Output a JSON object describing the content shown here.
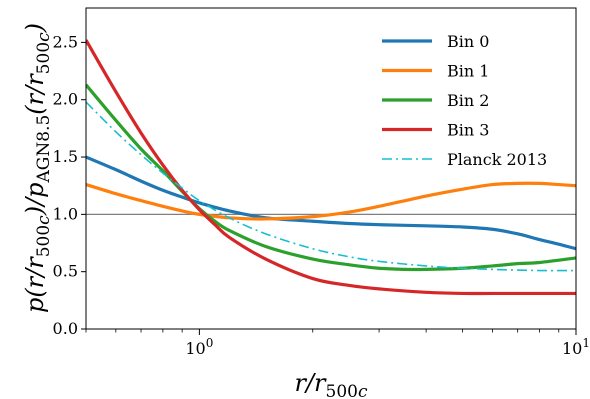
{
  "chart_data": {
    "type": "line",
    "xlabel": "r/r500c",
    "ylabel": "p(r/r500c)/pAGN8.5(r/r500c)",
    "x_scale": "log",
    "xlim": [
      0.5,
      10
    ],
    "ylim": [
      0,
      2.8
    ],
    "x_ticks": [
      {
        "value": 1,
        "base": "10",
        "exp": "0"
      },
      {
        "value": 10,
        "base": "10",
        "exp": "1"
      }
    ],
    "y_ticks": [
      "0.0",
      "0.5",
      "1.0",
      "1.5",
      "2.0",
      "2.5"
    ],
    "y_tick_values": [
      0.0,
      0.5,
      1.0,
      1.5,
      2.0,
      2.5
    ],
    "reference_line": 1.0,
    "grid": false,
    "legend_position": "top-right",
    "series": [
      {
        "name": "Bin 0",
        "color": "#1f77b4",
        "style": "solid",
        "x": [
          0.5,
          0.6,
          0.7,
          0.8,
          0.9,
          1.0,
          1.2,
          1.5,
          2.0,
          2.5,
          3.0,
          4.0,
          5.0,
          6.0,
          7.0,
          8.0,
          9.0,
          10.0
        ],
        "y": [
          1.5,
          1.39,
          1.29,
          1.21,
          1.15,
          1.1,
          1.03,
          0.97,
          0.94,
          0.92,
          0.91,
          0.9,
          0.89,
          0.87,
          0.83,
          0.78,
          0.74,
          0.7
        ]
      },
      {
        "name": "Bin 1",
        "color": "#ff7f0e",
        "style": "solid",
        "x": [
          0.5,
          0.6,
          0.7,
          0.8,
          0.9,
          1.0,
          1.2,
          1.5,
          2.0,
          2.5,
          3.0,
          4.0,
          5.0,
          6.0,
          7.0,
          8.0,
          9.0,
          10.0
        ],
        "y": [
          1.26,
          1.18,
          1.12,
          1.07,
          1.03,
          1.0,
          0.97,
          0.96,
          0.98,
          1.02,
          1.07,
          1.16,
          1.22,
          1.26,
          1.27,
          1.27,
          1.26,
          1.25
        ]
      },
      {
        "name": "Bin 2",
        "color": "#2ca02c",
        "style": "solid",
        "x": [
          0.5,
          0.6,
          0.7,
          0.8,
          0.9,
          1.0,
          1.1,
          1.2,
          1.5,
          2.0,
          2.5,
          3.0,
          3.5,
          4.0,
          5.0,
          6.0,
          7.0,
          8.0,
          10.0
        ],
        "y": [
          2.13,
          1.82,
          1.57,
          1.38,
          1.2,
          1.05,
          0.94,
          0.86,
          0.72,
          0.61,
          0.56,
          0.53,
          0.52,
          0.52,
          0.53,
          0.55,
          0.57,
          0.58,
          0.62
        ]
      },
      {
        "name": "Bin 3",
        "color": "#d62728",
        "style": "solid",
        "x": [
          0.5,
          0.6,
          0.7,
          0.8,
          0.9,
          1.0,
          1.1,
          1.2,
          1.5,
          2.0,
          2.5,
          3.0,
          4.0,
          5.0,
          6.0,
          8.0,
          10.0
        ],
        "y": [
          2.52,
          2.07,
          1.71,
          1.43,
          1.21,
          1.04,
          0.91,
          0.8,
          0.61,
          0.44,
          0.38,
          0.35,
          0.32,
          0.31,
          0.31,
          0.31,
          0.31
        ]
      },
      {
        "name": "Planck 2013",
        "color": "#17becf",
        "style": "dashdot",
        "x": [
          0.5,
          0.6,
          0.7,
          0.8,
          0.9,
          1.0,
          1.2,
          1.5,
          2.0,
          2.5,
          3.0,
          4.0,
          5.0,
          6.0,
          8.0,
          10.0
        ],
        "y": [
          1.98,
          1.72,
          1.52,
          1.36,
          1.23,
          1.12,
          0.97,
          0.83,
          0.7,
          0.63,
          0.59,
          0.55,
          0.53,
          0.52,
          0.51,
          0.51
        ]
      }
    ]
  }
}
